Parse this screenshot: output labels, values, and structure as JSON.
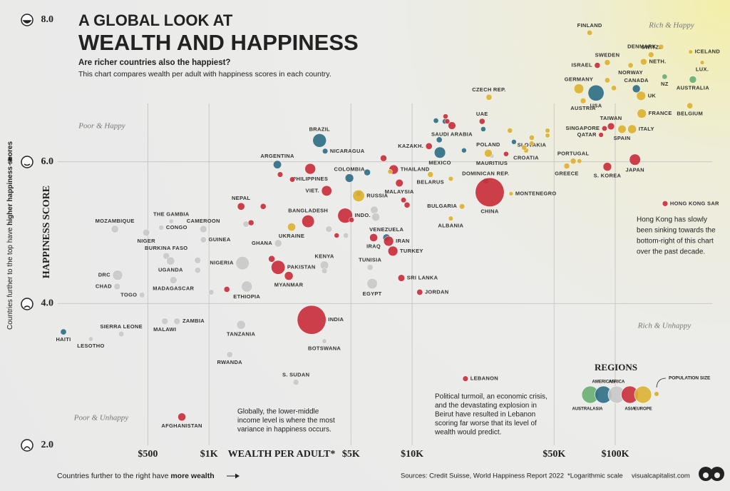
{
  "chart_data": {
    "type": "scatter",
    "title": [
      "A GLOBAL LOOK AT",
      "WEALTH AND HAPPINESS"
    ],
    "subtitle": [
      "Are richer countries also the happiest?",
      "This chart compares wealth per adult with happiness scores in each country."
    ],
    "x_label": "WEALTH PER ADULT*",
    "y_label": "HAPPINESS SCORE",
    "x_note": [
      "Countries further to the right have",
      "more wealth"
    ],
    "y_note": [
      "Countries further to the top have",
      "higher happiness scores"
    ],
    "x_scale": "log",
    "xlim": [
      180,
      300000
    ],
    "ylim": [
      2,
      8
    ],
    "xticks": [
      {
        "value": 500,
        "label": "$500"
      },
      {
        "value": 1000,
        "label": "$1K"
      },
      {
        "value": 5000,
        "label": "$5K"
      },
      {
        "value": 10000,
        "label": "$10K"
      },
      {
        "value": 50000,
        "label": "$50K"
      },
      {
        "value": 100000,
        "label": "$100K"
      }
    ],
    "yticks": [
      {
        "value": 2,
        "label": "2.0"
      },
      {
        "value": 4,
        "label": "4.0"
      },
      {
        "value": 6,
        "label": "6.0"
      },
      {
        "value": 8,
        "label": "8.0"
      }
    ],
    "grid": true,
    "quadrants": [
      "Poor & Happy",
      "Rich & Happy",
      "Rich & Unhappy",
      "Poor & Unhappy"
    ],
    "legend_title": "REGIONS",
    "size_legend": "POPULATION SIZE",
    "annotations": [
      [
        "Hong Kong has slowly",
        "been sinking towards the",
        "bottom-right of this chart",
        "over the past decade."
      ],
      [
        "Political turmoil, an economic crisis,",
        "and the devastating explosion in",
        "Beirut have resulted in Lebanon",
        "scoring far worse that its level of",
        "wealth would predict."
      ],
      [
        "Globally, the lower-middle",
        "income level is where the most",
        "variance in happiness occurs."
      ]
    ],
    "source": "Sources: Credit Suisse, World Happiness Report 2022",
    "footnote": "*Logarithmic scale",
    "brand": "visualcapitalist.com",
    "series": [
      {
        "name": "AUSTRALASIA",
        "color": "#6aaf72",
        "x": [
          175000,
          241000
        ],
        "values": [
          7.2,
          7.16
        ],
        "sizes": [
          5.1,
          26
        ],
        "labels": [
          "NZ",
          "AUSTRALIA"
        ]
      },
      {
        "name": "AMERICAS",
        "color": "#2f6f86",
        "x": [
          192,
          2170,
          3500,
          3730,
          4910,
          7480,
          13700,
          23000,
          127000,
          80400,
          18000,
          13600,
          14500,
          22400,
          31700,
          6010,
          13100,
          5450
        ],
        "values": [
          3.6,
          5.96,
          6.3,
          6.15,
          5.77,
          4.93,
          6.13,
          5.73,
          7.03,
          6.97,
          6.16,
          6.31,
          6.57,
          6.46,
          6.28,
          5.85,
          6.58,
          5.55
        ],
        "sizes": [
          11,
          45,
          214,
          6.6,
          51,
          28,
          127,
          11,
          38,
          332,
          3.5,
          10,
          5,
          4,
          3.5,
          17,
          5,
          5
        ],
        "labels": [
          "HAITI",
          "ARGENTINA",
          "BRAZIL",
          "NICARAGUA",
          "COLOMBIA",
          "VENEZUELA",
          "MEXICO",
          "DOMINICAN REP.",
          "CANADA",
          "USA",
          null,
          null,
          null,
          null,
          null,
          null,
          null,
          null
        ]
      },
      {
        "name": "AFRICA",
        "color": "#c9c9c9",
        "x": [
          262,
          370,
          344,
          355,
          353,
          468,
          491,
          652,
          582,
          616,
          647,
          668,
          606,
          696,
          938,
          938,
          1462,
          1535,
          1438,
          1264,
          3700,
          2680,
          2190,
          3700,
          6210,
          6360,
          24700,
          879,
          879,
          1024,
          1520,
          3890,
          4720,
          6510,
          6620,
          3700
        ],
        "values": [
          3.5,
          3.57,
          5.05,
          4.4,
          4.24,
          4.12,
          5.0,
          5.16,
          5.07,
          4.67,
          4.6,
          4.33,
          3.75,
          3.75,
          5.05,
          4.9,
          4.57,
          4.24,
          3.7,
          3.28,
          3.47,
          2.89,
          4.85,
          4.54,
          4.51,
          4.28,
          6.08,
          4.61,
          4.47,
          4.16,
          5.12,
          5.05,
          4.96,
          5.32,
          5.22,
          4.46
        ],
        "sizes": [
          2,
          8,
          32,
          95,
          17,
          8,
          25,
          2.5,
          5.5,
          21,
          46,
          28,
          19,
          19,
          27,
          13,
          210,
          120,
          60,
          13,
          2.4,
          11,
          31,
          54,
          12,
          104,
          1.3,
          17,
          12,
          8,
          14,
          17,
          6,
          36,
          45,
          8
        ],
        "labels": [
          "LESOTHO",
          "SIERRA LEONE",
          "MOZAMBIQUE",
          "DRC",
          "CHAD",
          "TOGO",
          "NIGER",
          "THE GAMBIA",
          "CONGO",
          "BURKINA FASO",
          "UGANDA",
          "MADAGASCAR",
          "MALAWI",
          "ZAMBIA",
          "CAMEROON",
          "GUINEA",
          "NIGERIA",
          "ETHIOPIA",
          "TANZANIA",
          "RWANDA",
          "BOTSWANA",
          "S. SUDAN",
          "GHANA",
          "KENYA",
          "TUNISIA",
          "EGYPT",
          "MAURITIUS",
          null,
          null,
          null,
          null,
          null,
          null,
          null,
          null,
          null
        ]
      },
      {
        "name": "ASIA",
        "color": "#c9303c",
        "x": [
          735,
          3200,
          2190,
          2470,
          1438,
          3075,
          4680,
          3795,
          3150,
          6460,
          7660,
          8040,
          8850,
          10900,
          8650,
          8110,
          12100,
          24100,
          15700,
          22100,
          81600,
          125000,
          91400,
          176000,
          95300,
          88500,
          85100,
          18300,
          1224,
          2035,
          1848,
          1611,
          2240,
          2570,
          7230,
          9440,
          9070,
          14600,
          14900,
          29000,
          4250,
          5030
        ],
        "values": [
          2.4,
          3.77,
          4.51,
          4.39,
          5.37,
          5.16,
          5.24,
          5.59,
          5.9,
          4.93,
          4.88,
          4.74,
          4.36,
          4.16,
          5.7,
          5.89,
          6.22,
          5.57,
          6.51,
          6.57,
          7.36,
          6.03,
          5.93,
          5.41,
          6.5,
          6.47,
          6.38,
          2.94,
          4.2,
          4.63,
          5.37,
          5.14,
          5.82,
          5.75,
          6.05,
          5.39,
          5.46,
          6.64,
          6.57,
          6.11,
          4.96,
          5.18
        ],
        "sizes": [
          40,
          1400,
          230,
          55,
          30,
          170,
          275,
          98,
          110,
          41,
          87,
          85,
          22,
          11,
          33,
          70,
          19,
          1410,
          35,
          10,
          9.4,
          125,
          52,
          7.4,
          24,
          5.5,
          2.9,
          7,
          10,
          18,
          10,
          9,
          7,
          6,
          17,
          10,
          6,
          4,
          4,
          4,
          4,
          5
        ],
        "labels": [
          "AFGHANISTAN",
          "INDIA",
          "PAKISTAN",
          "MYANMAR",
          "NEPAL",
          "BANGLADESH",
          "INDO.",
          "VIET.",
          "PHILIPPINES",
          "IRAQ",
          "IRAN",
          "TURKEY",
          "SRI LANKA",
          "JORDAN",
          "MALAYSIA",
          "THAILAND",
          "KAZAKH.",
          "CHINA",
          "SAUDI ARABIA",
          "UAE",
          "ISRAEL",
          "JAPAN",
          "S. KOREA",
          "HONG KONG SAR",
          "TAIWAN",
          "SINGAPORE",
          "QATAR",
          "LEBANON",
          null,
          null,
          null,
          null,
          null,
          null,
          null,
          null,
          null,
          null,
          null,
          null,
          null,
          null
        ]
      },
      {
        "name": "EUROPE",
        "color": "#dcb232",
        "x": [
          2550,
          5450,
          12300,
          30700,
          17600,
          15500,
          23900,
          23700,
          36400,
          38800,
          62100,
          57700,
          121000,
          108000,
          74800,
          168000,
          150000,
          235000,
          91400,
          138000,
          268000,
          119000,
          66200,
          134000,
          69500,
          135000,
          233000,
          30300,
          35600,
          46400,
          46400,
          38800,
          15500,
          7790,
          66600,
          91400,
          98400
        ],
        "values": [
          5.08,
          5.52,
          5.82,
          5.55,
          5.37,
          5.2,
          6.91,
          6.12,
          6.16,
          6.34,
          6.01,
          5.94,
          6.46,
          6.46,
          7.82,
          7.62,
          7.51,
          7.55,
          7.4,
          7.41,
          7.4,
          7.36,
          7.03,
          6.93,
          6.86,
          6.68,
          6.79,
          6.44,
          6.2,
          6.44,
          6.37,
          6.26,
          5.76,
          5.86,
          6.01,
          7.15,
          7.04
        ],
        "sizes": [
          44,
          145,
          9,
          0.6,
          7,
          2.8,
          10.7,
          38,
          4,
          5.5,
          10,
          10,
          59,
          47,
          5.5,
          5.8,
          8.7,
          0.4,
          10,
          17.5,
          0.6,
          5.4,
          83,
          67,
          9,
          68,
          11.6,
          5,
          5,
          3,
          2,
          2,
          3,
          2,
          2,
          5.5,
          5
        ],
        "labels": [
          "UKRAINE",
          "RUSSIA",
          "BELARUS",
          "MONTENEGRO",
          "BULGARIA",
          "ALBANIA",
          "CZECH REP.",
          "POLAND",
          "CROATIA",
          "SLOVAKIA",
          "PORTUGAL",
          "GREECE",
          "ITALY",
          "SPAIN",
          "FINLAND",
          "DENMARK",
          "SWITZ.",
          "ICELAND",
          "SWEDEN",
          "NETH.",
          "LUX.",
          "NORWAY",
          "GERMANY",
          "UK",
          "AUSTRIA",
          "FRANCE",
          "BELGIUM",
          null,
          null,
          null,
          null,
          null,
          null,
          null,
          null,
          null,
          null
        ]
      }
    ]
  }
}
